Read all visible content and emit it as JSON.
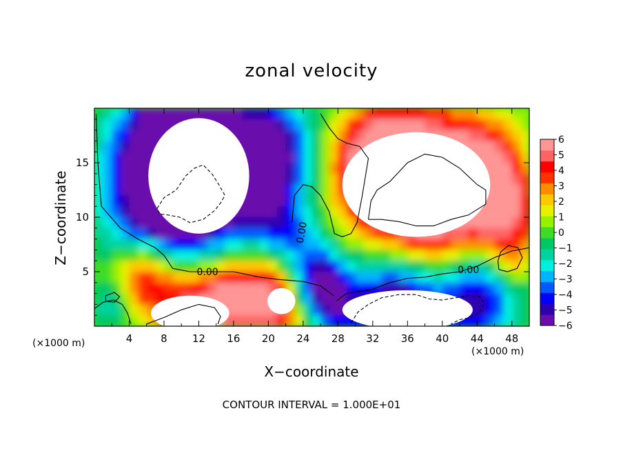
{
  "chart_data": {
    "type": "heatmap",
    "title": "zonal velocity",
    "xlabel": "X−coordinate",
    "ylabel": "Z−coordinate",
    "x_scale_label": "(×1000 m)",
    "footer": "CONTOUR INTERVAL = 1.000E+01",
    "xlim": [
      0,
      50
    ],
    "ylim": [
      0,
      20
    ],
    "xticks": [
      "4",
      "8",
      "12",
      "16",
      "20",
      "24",
      "28",
      "32",
      "36",
      "40",
      "44",
      "48"
    ],
    "yticks": [
      "5",
      "10",
      "15"
    ],
    "colorbar": {
      "ticks": [
        "6",
        "5",
        "4",
        "3",
        "2",
        "1",
        "0",
        "−1",
        "−2",
        "−3",
        "−4",
        "−5",
        "−6"
      ],
      "range": [
        -6,
        6
      ],
      "colors": [
        "#6a0dad",
        "#2e00b0",
        "#0000ff",
        "#005aff",
        "#00b4ff",
        "#00f0e0",
        "#00d2a0",
        "#00c864",
        "#3cdc28",
        "#96f000",
        "#e6f000",
        "#ffc800",
        "#ff8c00",
        "#ff3200",
        "#ff0000",
        "#ff6464",
        "#ff9696"
      ]
    },
    "contour_labels": [
      "0.00",
      "0.00",
      "0.00"
    ],
    "contour_interval": 10.0,
    "field_sources": [
      {
        "x": 9,
        "y": 12.5,
        "a": -9,
        "s": 4.8
      },
      {
        "x": 10,
        "y": 17,
        "a": -7,
        "s": 4.0
      },
      {
        "x": 17,
        "y": 13.5,
        "a": -5,
        "s": 3.0
      },
      {
        "x": 20,
        "y": 16,
        "a": -6,
        "s": 3.5
      },
      {
        "x": 22,
        "y": 8,
        "a": -4,
        "s": 2.5
      },
      {
        "x": 24,
        "y": 3,
        "a": -4,
        "s": 2.2
      },
      {
        "x": 26,
        "y": 5,
        "a": -3,
        "s": 2.0
      },
      {
        "x": 38,
        "y": 12.5,
        "a": 9,
        "s": 5.0
      },
      {
        "x": 32,
        "y": 15,
        "a": 5,
        "s": 3.5
      },
      {
        "x": 45,
        "y": 14,
        "a": 5,
        "s": 3.0
      },
      {
        "x": 47.5,
        "y": 10,
        "a": 4,
        "s": 2.5
      },
      {
        "x": 35,
        "y": 1.5,
        "a": -7,
        "s": 4.0
      },
      {
        "x": 44,
        "y": 2.5,
        "a": -5,
        "s": 3.0
      },
      {
        "x": 27.5,
        "y": 2.2,
        "a": -4,
        "s": 2.0
      },
      {
        "x": 21,
        "y": 2.5,
        "a": 7,
        "s": 3.0
      },
      {
        "x": 12,
        "y": 1.5,
        "a": 6,
        "s": 3.0
      },
      {
        "x": 6,
        "y": 4.5,
        "a": 5,
        "s": 2.5
      },
      {
        "x": 16,
        "y": 3.0,
        "a": 3,
        "s": 2.0
      },
      {
        "x": 2,
        "y": 2,
        "a": -2,
        "s": 1.5
      },
      {
        "x": 48,
        "y": 6,
        "a": 2,
        "s": 1.5
      }
    ],
    "blank_regions": [
      {
        "cx": 12,
        "cy": 13.8,
        "rx": 5.8,
        "ry": 5.3
      },
      {
        "cx": 37,
        "cy": 13.0,
        "rx": 8.5,
        "ry": 4.8
      },
      {
        "cx": 11,
        "cy": 1.2,
        "rx": 4.5,
        "ry": 1.6
      },
      {
        "cx": 36,
        "cy": 1.5,
        "rx": 7.5,
        "ry": 1.8
      },
      {
        "cx": 21.5,
        "cy": 2.3,
        "rx": 1.6,
        "ry": 1.2
      }
    ],
    "contours": [
      {
        "style": "solid",
        "label": 0,
        "points": [
          [
            0.2,
            19.5
          ],
          [
            0.4,
            15
          ],
          [
            0.8,
            11
          ],
          [
            3,
            9
          ],
          [
            5,
            8
          ],
          [
            7,
            7.2
          ],
          [
            8,
            6.5
          ],
          [
            9,
            5.3
          ],
          [
            11,
            5.0
          ],
          [
            13,
            5.0
          ],
          [
            16,
            5.0
          ],
          [
            19,
            4.5
          ],
          [
            21,
            4.3
          ],
          [
            24,
            4.1
          ],
          [
            26,
            3.7
          ],
          [
            27.5,
            2.8
          ]
        ]
      },
      {
        "style": "solid",
        "label": 1,
        "points": [
          [
            26,
            19.5
          ],
          [
            27,
            18.2
          ],
          [
            28,
            17.2
          ],
          [
            29,
            16.8
          ],
          [
            30.5,
            16.5
          ],
          [
            31.5,
            15.4
          ],
          [
            30.8,
            12
          ],
          [
            30.2,
            9.5
          ],
          [
            29.5,
            8.5
          ],
          [
            28.5,
            8.2
          ],
          [
            27.6,
            8.5
          ],
          [
            27,
            10.5
          ],
          [
            26,
            12
          ],
          [
            25,
            12.8
          ],
          [
            24,
            13
          ],
          [
            23,
            12
          ],
          [
            22.7,
            9.5
          ]
        ]
      },
      {
        "style": "solid",
        "label": 2,
        "points": [
          [
            27.8,
            2.3
          ],
          [
            29,
            3.0
          ],
          [
            30.5,
            3.2
          ],
          [
            32,
            3.4
          ],
          [
            34,
            4.0
          ],
          [
            36,
            4.4
          ],
          [
            38,
            4.5
          ],
          [
            40,
            4.8
          ],
          [
            42,
            5.0
          ],
          [
            44,
            5.5
          ],
          [
            46,
            6.3
          ],
          [
            48,
            6.9
          ],
          [
            50,
            7.2
          ]
        ]
      },
      {
        "style": "solid",
        "label": null,
        "points": [
          [
            31.5,
            9.8
          ],
          [
            31.8,
            11.5
          ],
          [
            32.5,
            12.5
          ],
          [
            34,
            13.3
          ],
          [
            36,
            15
          ],
          [
            38,
            15.8
          ],
          [
            40,
            15.5
          ],
          [
            42,
            14.5
          ],
          [
            44,
            13
          ],
          [
            45,
            12.5
          ],
          [
            45,
            11.2
          ],
          [
            43,
            10.2
          ],
          [
            41,
            9.8
          ],
          [
            39,
            9.2
          ],
          [
            37,
            9.2
          ],
          [
            35,
            9.6
          ],
          [
            33,
            9.8
          ],
          [
            31.5,
            9.8
          ]
        ]
      },
      {
        "style": "solid",
        "label": null,
        "points": [
          [
            46.5,
            5.2
          ],
          [
            47.5,
            5.0
          ],
          [
            48.6,
            5.3
          ],
          [
            49.2,
            6.3
          ],
          [
            48.7,
            7.2
          ],
          [
            47.6,
            7.4
          ],
          [
            46.7,
            6.8
          ],
          [
            46.4,
            6.0
          ],
          [
            46.5,
            5.2
          ]
        ]
      },
      {
        "style": "solid",
        "label": null,
        "points": [
          [
            6,
            0.2
          ],
          [
            8,
            0.8
          ],
          [
            10,
            1.5
          ],
          [
            12,
            2.0
          ],
          [
            13.8,
            1.7
          ],
          [
            14.5,
            0.9
          ],
          [
            14.2,
            0.2
          ]
        ]
      },
      {
        "style": "solid",
        "label": null,
        "points": [
          [
            0,
            1.6
          ],
          [
            1,
            2.2
          ],
          [
            2.2,
            2.4
          ],
          [
            3.2,
            2.0
          ],
          [
            3.8,
            1.2
          ],
          [
            4.2,
            0.2
          ]
        ]
      },
      {
        "style": "solid",
        "label": null,
        "points": [
          [
            1.3,
            2.8
          ],
          [
            2.3,
            3.1
          ],
          [
            2.9,
            2.7
          ],
          [
            2.3,
            2.2
          ],
          [
            1.3,
            2.3
          ],
          [
            1.3,
            2.8
          ]
        ]
      },
      {
        "style": "dashed",
        "label": null,
        "points": [
          [
            7.2,
            10.8
          ],
          [
            8,
            11.8
          ],
          [
            9.4,
            12.5
          ],
          [
            10.5,
            13.8
          ],
          [
            11.5,
            14.5
          ],
          [
            12.5,
            14.8
          ],
          [
            13.5,
            14.0
          ],
          [
            14.3,
            13.0
          ],
          [
            15,
            12.0
          ],
          [
            14.5,
            11.3
          ],
          [
            13.8,
            10.6
          ],
          [
            12.5,
            9.8
          ],
          [
            11,
            9.5
          ],
          [
            9.8,
            10.0
          ],
          [
            8.5,
            10.2
          ],
          [
            7.5,
            10.3
          ],
          [
            7.2,
            10.8
          ]
        ]
      },
      {
        "style": "dashed",
        "label": null,
        "points": [
          [
            29.5,
            0.3
          ],
          [
            30.3,
            1.3
          ],
          [
            31.5,
            2.0
          ],
          [
            33,
            2.6
          ],
          [
            35,
            2.9
          ],
          [
            37,
            2.9
          ],
          [
            38.5,
            2.5
          ],
          [
            40,
            2.4
          ],
          [
            41.5,
            2.6
          ],
          [
            43,
            2.8
          ],
          [
            44.3,
            2.7
          ],
          [
            44.8,
            2.1
          ],
          [
            44.3,
            1.3
          ],
          [
            43.3,
            0.8
          ],
          [
            42,
            0.6
          ],
          [
            41,
            0.2
          ]
        ]
      }
    ],
    "contour_label_positions": [
      [
        13.0,
        5.0
      ],
      [
        23.8,
        8.6
      ],
      [
        43.0,
        5.2
      ]
    ]
  }
}
